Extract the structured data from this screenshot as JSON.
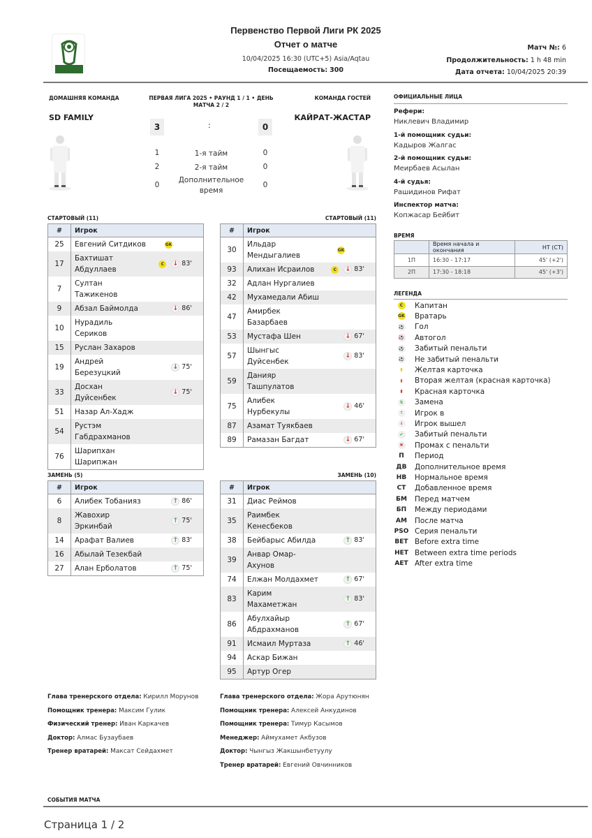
{
  "header": {
    "title": "Первенство Первой Лиги РК 2025",
    "subtitle": "Отчет о матче",
    "datetime": "10/04/2025 16:30 (UTC+5) Asia/Aqtau",
    "attendance_label": "Посещаемость:",
    "attendance": "300",
    "match_no_label": "Матч №:",
    "match_no": "6",
    "duration_label": "Продолжительность:",
    "duration": "1 h 48 min",
    "report_date_label": "Дата отчета:",
    "report_date": "10/04/2025 20:39",
    "logo_text": "КАЗАХСТАН БIРIНШI ЛИГАСЫ",
    "brand_color": "#2e6b2e"
  },
  "match": {
    "home_caption": "ДОМАШНЯЯ КОМАНДА",
    "away_caption": "КОМАНДА ГОСТЕЙ",
    "round_info": "ПЕРВАЯ ЛИГА 2025 • РАУНД 1 / 1 • ДЕНЬ МАТЧА 2 / 2",
    "home_team": "SD FAMILY",
    "away_team": "КАЙРАТ-ЖАСТАР",
    "home_score": "3",
    "away_score": "0",
    "separator": ":",
    "periods": [
      {
        "home": "1",
        "label": "1-я тайм",
        "away": "0"
      },
      {
        "home": "2",
        "label": "2-я тайм",
        "away": "0"
      },
      {
        "home": "0",
        "label": "Дополнительное время",
        "away": "0"
      }
    ]
  },
  "officials": {
    "title": "ОФИЦИАЛЬНЫЕ ЛИЦА",
    "items": [
      {
        "role": "Рефери:",
        "name": "Никлевич Владимир"
      },
      {
        "role": "1-й помощник судьи:",
        "name": "Кадыров Жалгас"
      },
      {
        "role": "2-й помощник судьи:",
        "name": "Меирбаев Асылан"
      },
      {
        "role": "4-й судья:",
        "name": "Рашидинов Рифат"
      },
      {
        "role": "Инспектор матча:",
        "name": "Копжасар Бейбит"
      }
    ]
  },
  "time": {
    "title": "ВРЕМЯ",
    "headers": [
      "",
      "Время начала и окончания",
      "НТ (СТ)"
    ],
    "rows": [
      [
        "1П",
        "16:30 - 17:17",
        "45' (+2')"
      ],
      [
        "2П",
        "17:30 - 18:18",
        "45' (+3')"
      ]
    ]
  },
  "legend": {
    "title": "ЛЕГЕНДА",
    "items": [
      {
        "icon": "captain-icon",
        "sym": "C",
        "label": "Капитан"
      },
      {
        "icon": "goalkeeper-icon",
        "sym": "GK",
        "label": "Вратарь"
      },
      {
        "icon": "goal-icon",
        "sym": "⚽",
        "label": "Гол"
      },
      {
        "icon": "own-goal-icon",
        "sym": "⚽",
        "label": "Автогол"
      },
      {
        "icon": "penalty-scored-icon",
        "sym": "⚽",
        "label": "Забитый пенальти"
      },
      {
        "icon": "penalty-missed-icon",
        "sym": "⚽",
        "label": "Не забитый пенальти"
      },
      {
        "icon": "yellow-card-icon",
        "sym": "▮",
        "label": "Желтая карточка"
      },
      {
        "icon": "second-yellow-icon",
        "sym": "▮",
        "label": "Вторая желтая (красная карточка)"
      },
      {
        "icon": "red-card-icon",
        "sym": "▮",
        "label": "Красная карточка"
      },
      {
        "icon": "substitution-icon",
        "sym": "⇅",
        "label": "Замена"
      },
      {
        "icon": "player-in-icon",
        "sym": "↑",
        "label": "Игрок в"
      },
      {
        "icon": "player-out-icon",
        "sym": "↓",
        "label": "Игрок вышел"
      },
      {
        "icon": "check-icon",
        "sym": "✔",
        "label": "Забитый пенальти"
      },
      {
        "icon": "cross-icon",
        "sym": "✖",
        "label": "Промах с пенальти"
      },
      {
        "icon": "abbr",
        "sym": "П",
        "label": "Период"
      },
      {
        "icon": "abbr",
        "sym": "ДВ",
        "label": "Дополнительное время"
      },
      {
        "icon": "abbr",
        "sym": "НВ",
        "label": "Нормальное время"
      },
      {
        "icon": "abbr",
        "sym": "СТ",
        "label": "Добавленное время"
      },
      {
        "icon": "abbr",
        "sym": "БМ",
        "label": "Перед матчем"
      },
      {
        "icon": "abbr",
        "sym": "БП",
        "label": "Между периодами"
      },
      {
        "icon": "abbr",
        "sym": "АМ",
        "label": "После матча"
      },
      {
        "icon": "abbr",
        "sym": "PSO",
        "label": "Серия пенальти"
      },
      {
        "icon": "abbr",
        "sym": "BET",
        "label": "Before extra time"
      },
      {
        "icon": "abbr",
        "sym": "HET",
        "label": "Between extra time periods"
      },
      {
        "icon": "abbr",
        "sym": "AET",
        "label": "After extra time"
      }
    ]
  },
  "lineups": {
    "col_num": "#",
    "col_player": "Игрок",
    "home_start": {
      "title": "СТАРТОВЫЙ (11)",
      "players": [
        {
          "num": "25",
          "name": "Евгений Ситдиков",
          "badge": "GK"
        },
        {
          "num": "17",
          "name": "Бахтишат\nАбдуллаев",
          "badge": "C",
          "sub": "out",
          "minute": "83'"
        },
        {
          "num": "7",
          "name": "Султан\nТажикенов"
        },
        {
          "num": "9",
          "name": "Абзал Баймолда",
          "sub": "out",
          "minute": "86'"
        },
        {
          "num": "10",
          "name": "Нурадиль\nСериков"
        },
        {
          "num": "15",
          "name": "Руслан Захаров"
        },
        {
          "num": "19",
          "name": "Андрей\nБерезуцкий",
          "sub": "out",
          "minute": "75'"
        },
        {
          "num": "33",
          "name": "Досхан\nДуйсенбек",
          "sub": "out",
          "minute": "75'"
        },
        {
          "num": "51",
          "name": "Назар Ал-Хадж"
        },
        {
          "num": "54",
          "name": "Рустэм\nГабдрахманов"
        },
        {
          "num": "76",
          "name": "Шарипхан\nШарипжан"
        }
      ]
    },
    "away_start": {
      "title": "СТАРТОВЫЙ (11)",
      "players": [
        {
          "num": "30",
          "name": "Ильдар\nМендыгалиев",
          "badge": "GK"
        },
        {
          "num": "93",
          "name": "Алихан Исраилов",
          "badge": "C",
          "sub": "out",
          "minute": "83'"
        },
        {
          "num": "32",
          "name": "Адлан Нургалиев"
        },
        {
          "num": "42",
          "name": "Мухамедали Абиш"
        },
        {
          "num": "47",
          "name": "Амирбек\nБазарбаев"
        },
        {
          "num": "53",
          "name": "Мустафа Шен",
          "sub": "out",
          "minute": "67'"
        },
        {
          "num": "57",
          "name": "Шынгыс\nДуйсенбек",
          "sub": "out",
          "minute": "83'"
        },
        {
          "num": "59",
          "name": "Данияр\nТашпулатов"
        },
        {
          "num": "75",
          "name": "Алибек\nНурбекулы",
          "sub": "out",
          "minute": "46'"
        },
        {
          "num": "87",
          "name": "Азамат Туякбаев"
        },
        {
          "num": "89",
          "name": "Рамазан Багдат",
          "sub": "out",
          "minute": "67'"
        }
      ]
    },
    "home_subs": {
      "title": "ЗАМЕНЬ (5)",
      "players": [
        {
          "num": "6",
          "name": "Алибек Тобанияз",
          "sub": "in",
          "minute": "86'"
        },
        {
          "num": "8",
          "name": "Жавохир\nЭркинбай",
          "sub": "in",
          "minute": "75'"
        },
        {
          "num": "14",
          "name": "Арафат Валиев",
          "sub": "in",
          "minute": "83'"
        },
        {
          "num": "16",
          "name": "Абылай Тезекбай"
        },
        {
          "num": "27",
          "name": "Алан Ерболатов",
          "sub": "in",
          "minute": "75'"
        }
      ]
    },
    "away_subs": {
      "title": "ЗАМЕНЬ (10)",
      "players": [
        {
          "num": "31",
          "name": "Диас Реймов"
        },
        {
          "num": "35",
          "name": "Раимбек\nКенесбеков"
        },
        {
          "num": "38",
          "name": "Бейбарыс Абилда",
          "sub": "in",
          "minute": "83'"
        },
        {
          "num": "39",
          "name": "Анвар Омар-\nАхунов"
        },
        {
          "num": "74",
          "name": "Елжан Молдахмет",
          "sub": "in",
          "minute": "67'"
        },
        {
          "num": "83",
          "name": "Карим\nМахаметжан",
          "sub": "in",
          "minute": "83'"
        },
        {
          "num": "86",
          "name": "Абулхайыр\nАбдрахманов",
          "sub": "in",
          "minute": "67'"
        },
        {
          "num": "91",
          "name": "Исмаил Муртаза",
          "sub": "in",
          "minute": "46'"
        },
        {
          "num": "94",
          "name": "Аскар Бижан"
        },
        {
          "num": "95",
          "name": "Артур Огер"
        }
      ]
    }
  },
  "staff": {
    "home": [
      {
        "role": "Глава тренерского отдела:",
        "name": "Кирилл Морунов"
      },
      {
        "role": "Помощник тренера:",
        "name": "Максим Гулик"
      },
      {
        "role": "Физический тренер:",
        "name": "Иван Каркачев"
      },
      {
        "role": "Доктор:",
        "name": "Алмас Бузаубаев"
      },
      {
        "role": "Тренер вратарей:",
        "name": "Максат Сейдахмет"
      }
    ],
    "away": [
      {
        "role": "Глава тренерского отдела:",
        "name": "Жора Арутюнян"
      },
      {
        "role": "Помощник тренера:",
        "name": "Алексей Анкудинов"
      },
      {
        "role": "Помощник тренера:",
        "name": "Тимур Касымов"
      },
      {
        "role": "Менеджер:",
        "name": "Аймухамет Акбузов"
      },
      {
        "role": "Доктор:",
        "name": "Чынгыз Жакшынбетуулу"
      },
      {
        "role": "Тренер вратарей:",
        "name": "Евгений Овчинников"
      }
    ]
  },
  "events_title": "СОБЫТИЯ МАТЧА",
  "footer": {
    "page": "Страница 1 / 2"
  }
}
